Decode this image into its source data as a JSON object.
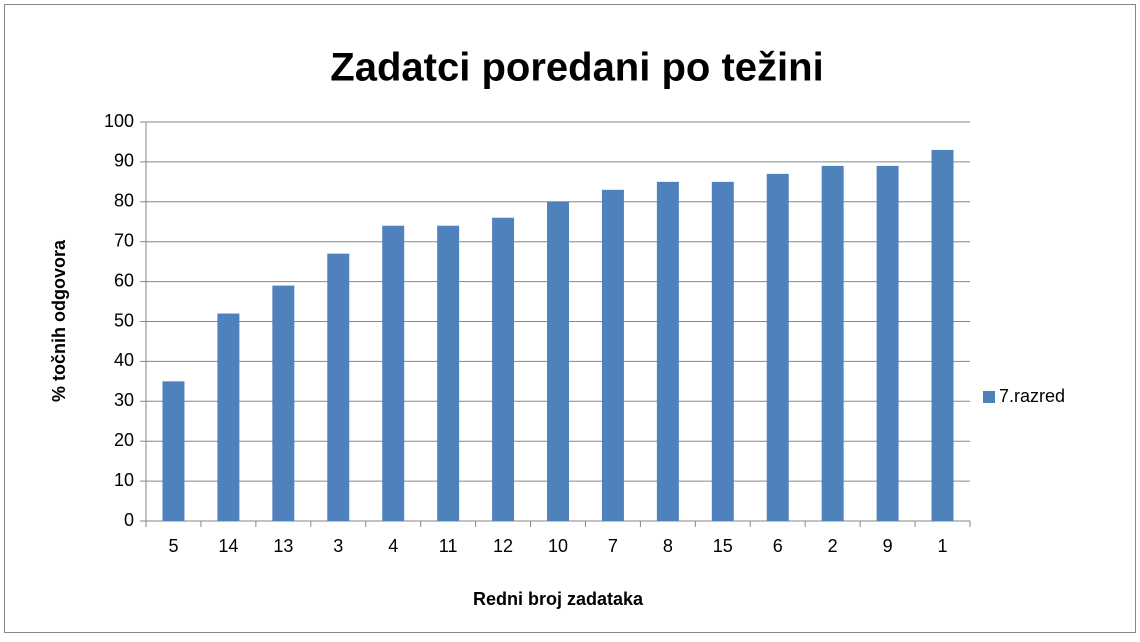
{
  "chart_data": {
    "type": "bar",
    "title": "Zadatci poredani po težini",
    "x_label": "Redni broj zadataka",
    "y_label": "% točnih odgovora",
    "categories": [
      "5",
      "14",
      "13",
      "3",
      "4",
      "11",
      "12",
      "10",
      "7",
      "8",
      "15",
      "6",
      "2",
      "9",
      "1"
    ],
    "series": [
      {
        "name": "7.razred",
        "color": "#4f81bd",
        "values": [
          35,
          52,
          59,
          67,
          74,
          74,
          76,
          80,
          83,
          85,
          85,
          87,
          89,
          89,
          93
        ]
      }
    ],
    "ylim": [
      0,
      100
    ],
    "yticks": [
      0,
      10,
      20,
      30,
      40,
      50,
      60,
      70,
      80,
      90,
      100
    ],
    "grid": true,
    "legend": "right"
  }
}
